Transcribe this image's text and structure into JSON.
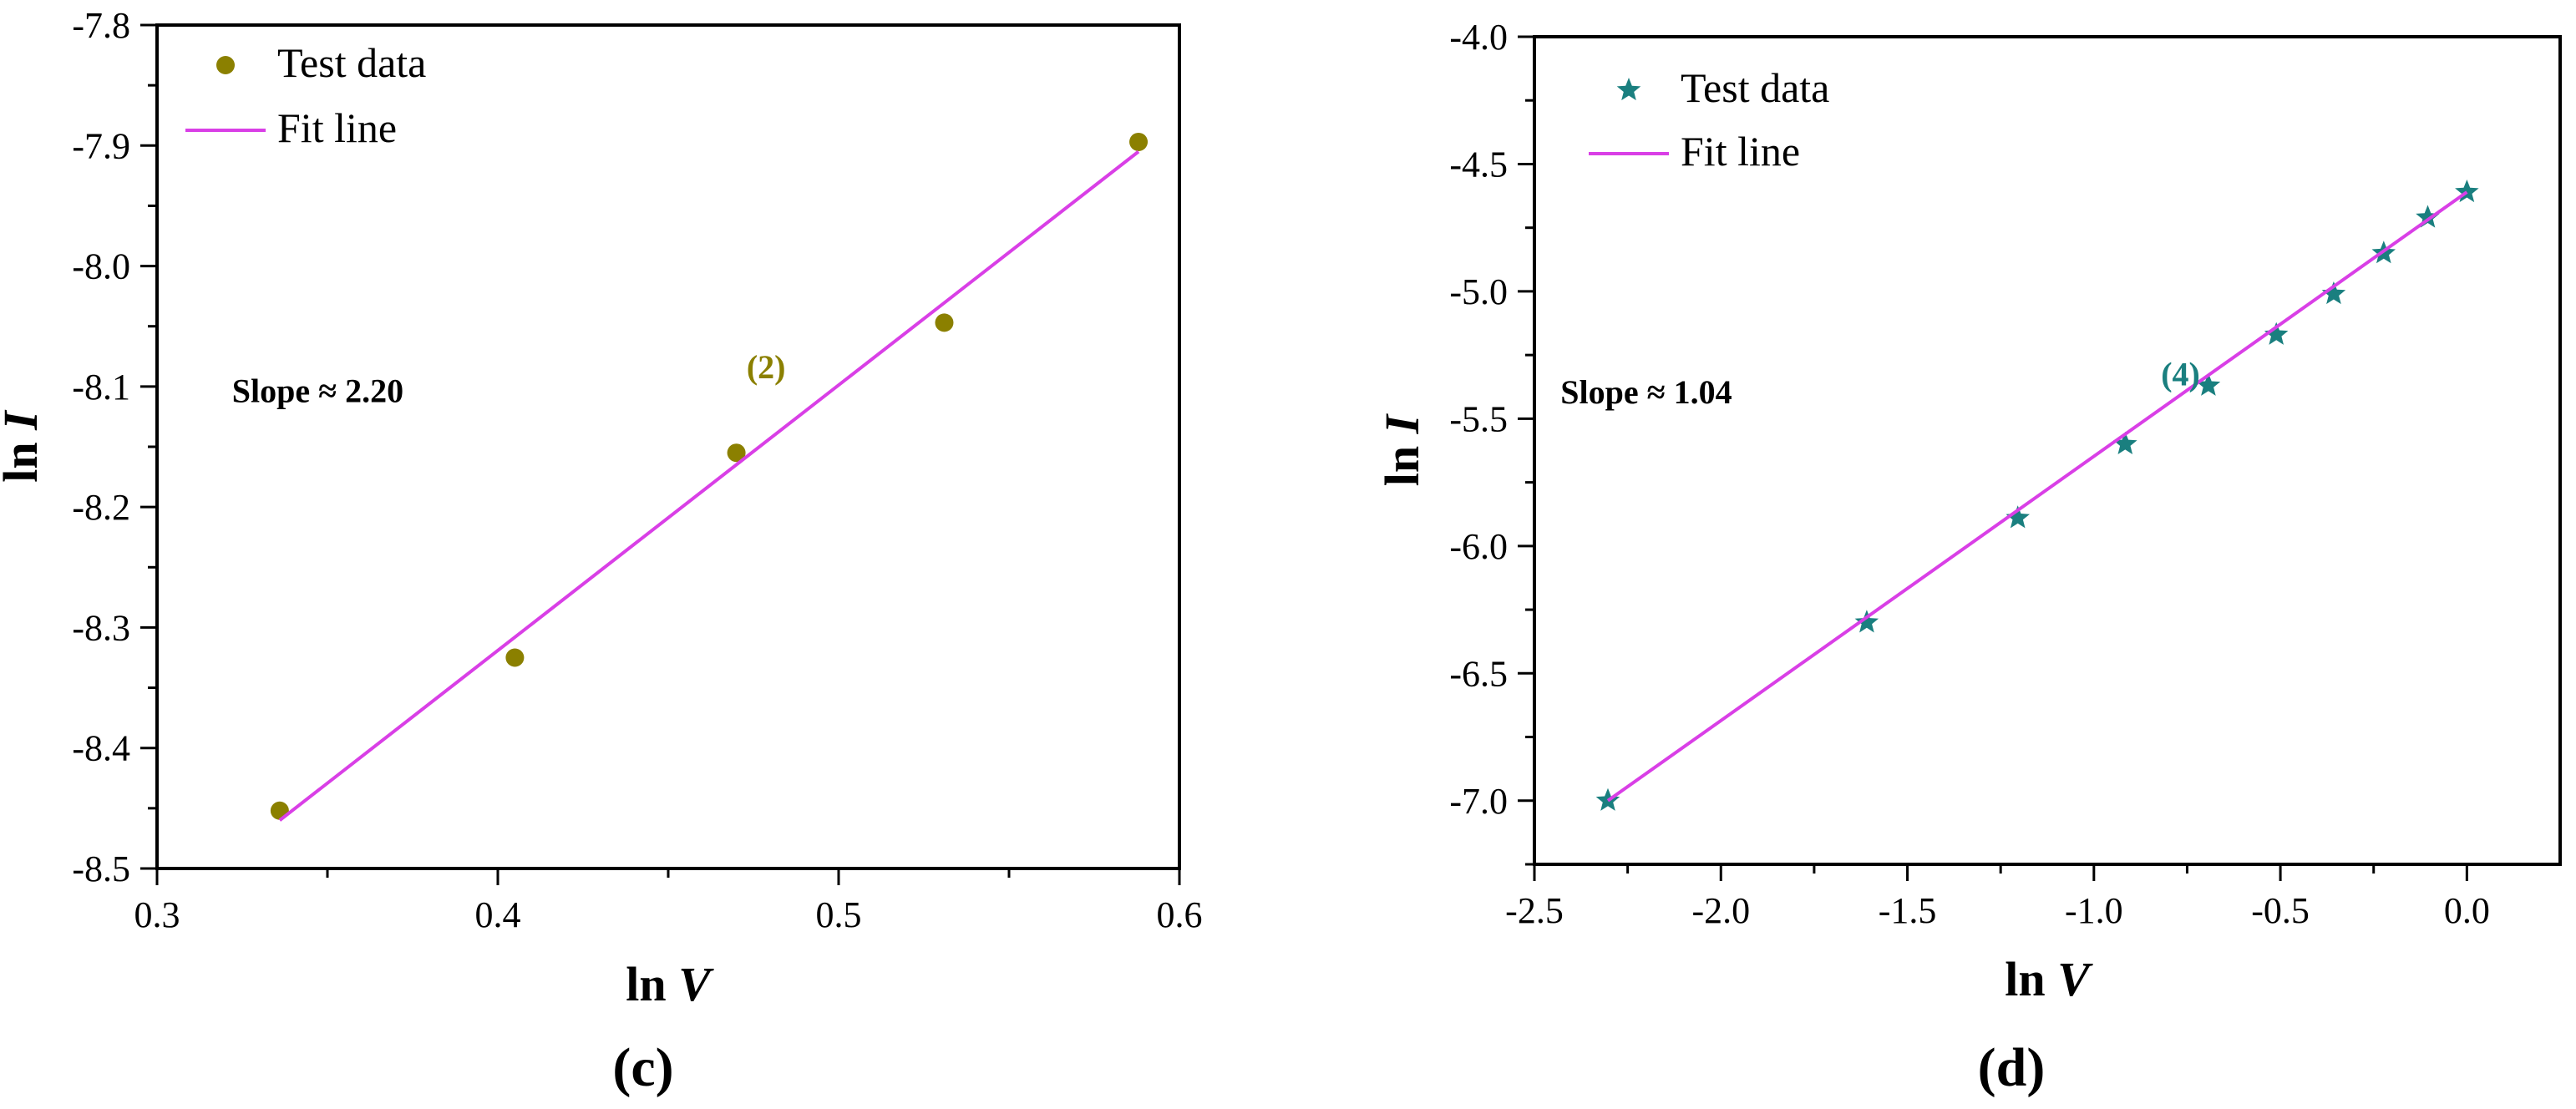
{
  "chart_data": [
    {
      "type": "scatter",
      "panel_label": "(c)",
      "xlabel_prefix": "ln ",
      "xlabel_var": "V",
      "ylabel_prefix": "ln ",
      "ylabel_var": "I",
      "xlim": [
        0.3,
        0.6
      ],
      "ylim": [
        -8.5,
        -7.8
      ],
      "xticks": [
        0.3,
        0.4,
        0.5,
        0.6
      ],
      "xtick_labels": [
        "0.3",
        "0.4",
        "0.5",
        "0.6"
      ],
      "yticks": [
        -8.5,
        -8.4,
        -8.3,
        -8.2,
        -8.1,
        -8.0,
        -7.9,
        -7.8
      ],
      "ytick_labels": [
        "-8.5",
        "-8.4",
        "-8.3",
        "-8.2",
        "-8.1",
        "-8.0",
        "-7.9",
        "-7.8"
      ],
      "grid": false,
      "legend_position": "top-left",
      "series": [
        {
          "name": "Test data",
          "kind": "points",
          "marker": "circle",
          "color": "#8b8000",
          "x": [
            0.336,
            0.405,
            0.47,
            0.531,
            0.588
          ],
          "y": [
            -8.452,
            -8.325,
            -8.155,
            -8.047,
            -7.897
          ]
        },
        {
          "name": "Fit line",
          "kind": "line",
          "color": "#d93fe6",
          "x": [
            0.336,
            0.588
          ],
          "y": [
            -8.46,
            -7.905
          ]
        }
      ],
      "annotations": [
        {
          "text": "Slope ≈ 2.20",
          "x": 0.322,
          "y": -8.113,
          "color": "#000000"
        },
        {
          "text": "(2)",
          "x": 0.473,
          "y": -8.093,
          "color": "#8b8000"
        }
      ]
    },
    {
      "type": "scatter",
      "panel_label": "(d)",
      "xlabel_prefix": "ln ",
      "xlabel_var": "V",
      "ylabel_prefix": "ln ",
      "ylabel_var": "I",
      "xlim": [
        -2.5,
        0.25
      ],
      "ylim": [
        -7.25,
        -4.0
      ],
      "xticks": [
        -2.5,
        -2.0,
        -1.5,
        -1.0,
        -0.5,
        0.0
      ],
      "xtick_labels": [
        "-2.5",
        "-2.0",
        "-1.5",
        "-1.0",
        "-0.5",
        "0.0"
      ],
      "yticks": [
        -7.0,
        -6.5,
        -6.0,
        -5.5,
        -5.0,
        -4.5,
        -4.0
      ],
      "ytick_labels": [
        "-7.0",
        "-6.5",
        "-6.0",
        "-5.5",
        "-5.0",
        "-4.5",
        "-4.0"
      ],
      "grid": false,
      "legend_position": "top-left",
      "series": [
        {
          "name": "Test data",
          "kind": "points",
          "marker": "star",
          "color": "#1a7f7f",
          "x": [
            -2.303,
            -1.609,
            -1.204,
            -0.916,
            -0.693,
            -0.511,
            -0.357,
            -0.223,
            -0.105,
            0.0
          ],
          "y": [
            -7.0,
            -6.3,
            -5.89,
            -5.6,
            -5.37,
            -5.17,
            -5.01,
            -4.85,
            -4.71,
            -4.61
          ]
        },
        {
          "name": "Fit line",
          "kind": "line",
          "color": "#d93fe6",
          "x": [
            -2.303,
            0.0
          ],
          "y": [
            -7.0,
            -4.61
          ]
        }
      ],
      "annotations": [
        {
          "text": "Slope ≈ 1.04",
          "x": -2.43,
          "y": -5.44,
          "color": "#000000"
        },
        {
          "text": "(4)",
          "x": -0.82,
          "y": -5.37,
          "color": "#1a7f7f"
        }
      ]
    }
  ]
}
